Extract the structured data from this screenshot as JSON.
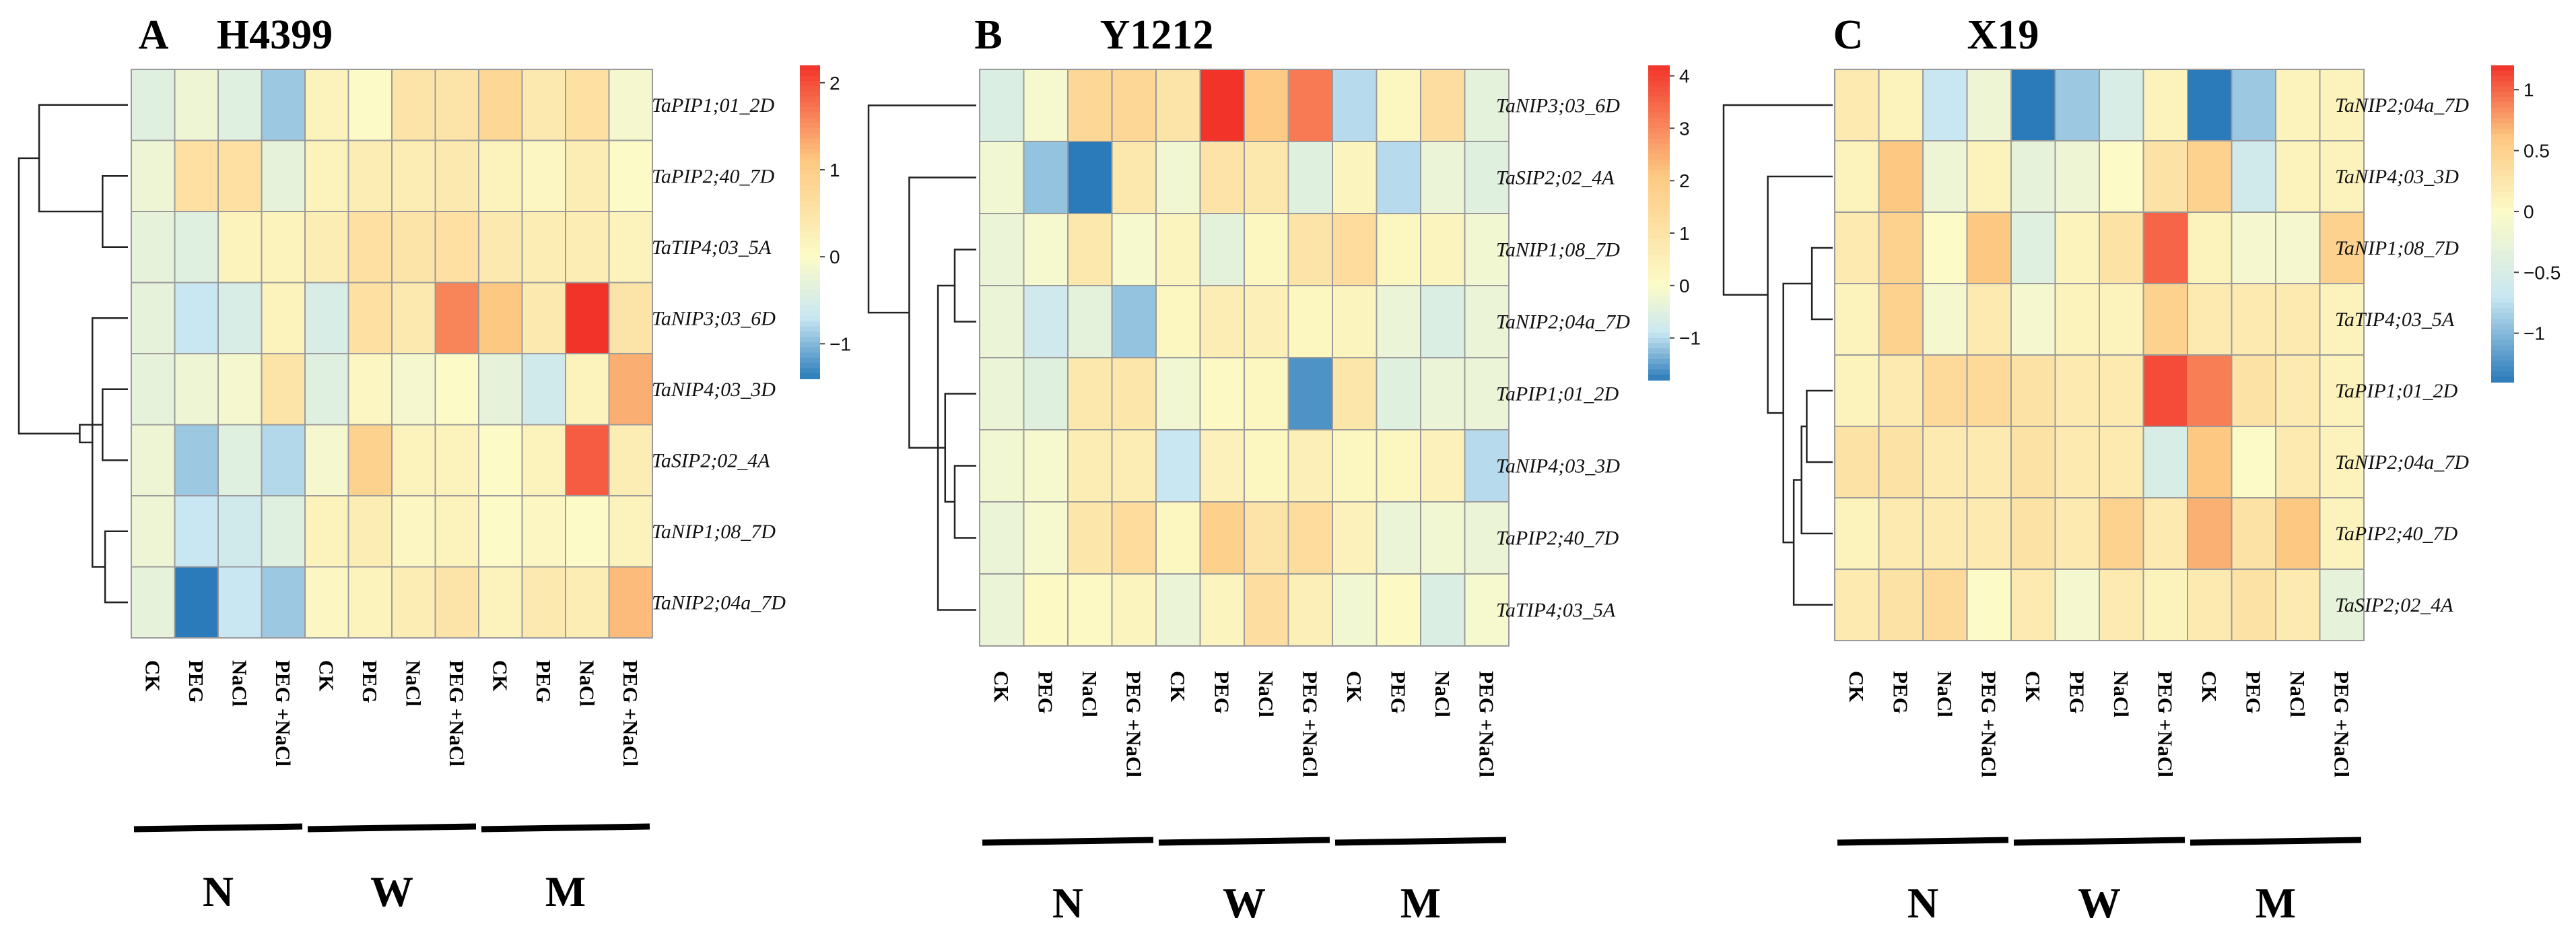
{
  "figure": {
    "group_labels": [
      "N",
      "W",
      "M"
    ],
    "colormap": {
      "low": "#2b7bba",
      "mid_low": "#c9e7f2",
      "mid": "#fcfbc8",
      "mid_high": "#fdc982",
      "high": "#f2332a"
    }
  },
  "chart_data": [
    {
      "type": "heatmap",
      "letter": "A",
      "title": "H4399",
      "columns": [
        "CK",
        "PEG",
        "NaCl",
        "PEG +NaCl",
        "CK",
        "PEG",
        "NaCl",
        "PEG +NaCl",
        "CK",
        "PEG",
        "NaCl",
        "PEG +NaCl"
      ],
      "column_groups": [
        "N",
        "N",
        "N",
        "N",
        "W",
        "W",
        "W",
        "W",
        "M",
        "M",
        "M",
        "M"
      ],
      "rows": [
        "TaPIP1;01_2D",
        "TaPIP2;40_7D",
        "TaTIP4;03_5A",
        "TaNIP3;03_6D",
        "TaNIP4;03_3D",
        "TaSIP2;02_4A",
        "TaNIP1;08_7D",
        "TaNIP2;04a_7D"
      ],
      "values": [
        [
          -0.4,
          -0.2,
          -0.4,
          -0.9,
          0.2,
          0.0,
          0.5,
          0.5,
          0.8,
          0.4,
          0.6,
          -0.1
        ],
        [
          -0.2,
          0.6,
          0.6,
          -0.3,
          0.2,
          0.3,
          0.3,
          0.4,
          0.2,
          0.1,
          0.3,
          0.0
        ],
        [
          -0.3,
          -0.4,
          0.2,
          0.2,
          0.3,
          0.6,
          0.5,
          0.6,
          0.4,
          0.3,
          0.3,
          0.2
        ],
        [
          -0.3,
          -0.7,
          -0.5,
          0.2,
          -0.5,
          0.6,
          0.4,
          1.6,
          1.1,
          0.4,
          2.2,
          0.5
        ],
        [
          -0.3,
          -0.2,
          -0.1,
          0.5,
          -0.4,
          0.1,
          -0.1,
          0.0,
          -0.3,
          -0.6,
          0.2,
          1.3
        ],
        [
          -0.2,
          -0.9,
          -0.4,
          -0.8,
          -0.1,
          0.9,
          0.2,
          0.2,
          0.0,
          0.2,
          1.9,
          0.3
        ],
        [
          -0.2,
          -0.7,
          -0.6,
          -0.4,
          0.2,
          0.3,
          0.1,
          0.2,
          0.0,
          0.1,
          0.0,
          0.2
        ],
        [
          -0.3,
          -1.4,
          -0.7,
          -0.9,
          0.1,
          0.2,
          0.3,
          0.5,
          0.2,
          0.4,
          0.3,
          1.2
        ]
      ],
      "dendrogram": {
        "merges": [
          [
            1,
            2
          ],
          [
            0,
            8
          ],
          [
            4,
            5
          ],
          [
            6,
            7
          ],
          [
            3,
            11
          ],
          [
            10,
            12
          ],
          [
            9,
            13
          ]
        ],
        "heights": [
          1,
          3.5,
          1,
          0.9,
          1.4,
          1.9,
          4.3
        ]
      },
      "colorbar": {
        "min": -1.4,
        "max": 2.2,
        "ticks": [
          -1,
          0,
          1,
          2
        ],
        "tick_labels": [
          "−1",
          "0",
          "1",
          "2"
        ]
      }
    },
    {
      "type": "heatmap",
      "letter": "B",
      "title": "Y1212",
      "columns": [
        "CK",
        "PEG",
        "NaCl",
        "PEG +NaCl",
        "CK",
        "PEG",
        "NaCl",
        "PEG +NaCl",
        "CK",
        "PEG",
        "NaCl",
        "PEG +NaCl"
      ],
      "column_groups": [
        "N",
        "N",
        "N",
        "N",
        "W",
        "W",
        "W",
        "W",
        "M",
        "M",
        "M",
        "M"
      ],
      "rows": [
        "TaNIP3;03_6D",
        "TaSIP2;02_4A",
        "TaNIP1;08_7D",
        "TaNIP2;04a_7D",
        "TaPIP1;01_2D",
        "TaNIP4;03_3D",
        "TaPIP2;40_7D",
        "TaTIP4;03_5A"
      ],
      "values": [
        [
          -0.6,
          -0.1,
          1.5,
          1.5,
          1.0,
          4.2,
          2.0,
          3.2,
          -1.0,
          0.2,
          1.2,
          -0.4
        ],
        [
          -0.2,
          -1.2,
          -1.8,
          0.8,
          -0.2,
          1.0,
          0.8,
          -0.5,
          0.3,
          -1.0,
          -0.3,
          -0.5
        ],
        [
          -0.3,
          -0.1,
          0.8,
          -0.1,
          0.3,
          -0.4,
          0.2,
          1.0,
          1.3,
          0.2,
          0.3,
          -0.2
        ],
        [
          -0.3,
          -0.8,
          -0.4,
          -1.2,
          0.2,
          0.6,
          0.5,
          0.2,
          0.3,
          -0.3,
          -0.6,
          -0.3
        ],
        [
          -0.3,
          -0.5,
          0.8,
          0.9,
          -0.2,
          0.1,
          0.2,
          -1.6,
          0.9,
          -0.5,
          -0.3,
          -0.3
        ],
        [
          -0.2,
          -0.1,
          0.6,
          0.6,
          -0.9,
          0.4,
          0.2,
          0.5,
          0.2,
          0.2,
          0.4,
          -1.0
        ],
        [
          -0.3,
          -0.1,
          0.9,
          1.3,
          0.2,
          1.8,
          1.0,
          1.3,
          0.4,
          -0.3,
          -0.2,
          -0.3
        ],
        [
          -0.3,
          0.1,
          0.1,
          0.3,
          -0.3,
          0.3,
          1.2,
          0.5,
          -0.2,
          0.1,
          -0.6,
          -0.1
        ]
      ],
      "dendrogram": {
        "merges": [
          [
            2,
            3
          ],
          [
            5,
            6
          ],
          [
            4,
            9
          ],
          [
            8,
            7
          ],
          [
            10,
            11
          ],
          [
            1,
            12
          ],
          [
            0,
            13
          ]
        ],
        "heights": [
          0.9,
          0.9,
          1.3,
          1.6,
          2.0,
          2.8,
          4.5
        ]
      },
      "colorbar": {
        "min": -1.8,
        "max": 4.2,
        "ticks": [
          -1,
          0,
          1,
          2,
          3,
          4
        ],
        "tick_labels": [
          "−1",
          "0",
          "1",
          "2",
          "3",
          "4"
        ]
      }
    },
    {
      "type": "heatmap",
      "letter": "C",
      "title": "X19",
      "columns": [
        "CK",
        "PEG",
        "NaCl",
        "PEG +NaCl",
        "CK",
        "PEG",
        "NaCl",
        "PEG +NaCl",
        "CK",
        "PEG",
        "NaCl",
        "PEG +NaCl"
      ],
      "column_groups": [
        "N",
        "N",
        "N",
        "N",
        "W",
        "W",
        "W",
        "W",
        "M",
        "M",
        "M",
        "M"
      ],
      "rows": [
        "TaNIP2;04a_7D",
        "TaNIP4;03_3D",
        "TaNIP1;08_7D",
        "TaTIP4;03_5A",
        "TaPIP1;01_2D",
        "TaNIP2;04a_7D",
        "TaPIP2;40_7D",
        "TaSIP2;02_4A"
      ],
      "values": [
        [
          0.2,
          0.1,
          -0.7,
          -0.2,
          -1.4,
          -0.9,
          -0.5,
          0.1,
          -1.4,
          -0.9,
          0.1,
          0.1
        ],
        [
          0.1,
          0.6,
          -0.2,
          0.1,
          -0.3,
          -0.2,
          0.0,
          0.3,
          0.5,
          -0.6,
          0.1,
          0.1
        ],
        [
          0.2,
          0.5,
          0.0,
          0.6,
          -0.4,
          0.1,
          0.3,
          1.0,
          0.1,
          -0.1,
          -0.1,
          0.5
        ],
        [
          0.1,
          0.5,
          -0.1,
          0.2,
          -0.1,
          0.1,
          0.1,
          0.5,
          0.2,
          0.2,
          0.2,
          0.1
        ],
        [
          0.1,
          0.2,
          0.4,
          0.4,
          0.3,
          0.2,
          0.2,
          1.1,
          0.9,
          0.3,
          0.2,
          0.1
        ],
        [
          0.3,
          0.3,
          0.2,
          0.2,
          0.3,
          0.2,
          0.2,
          -0.5,
          0.6,
          0.0,
          0.2,
          0.1
        ],
        [
          0.1,
          0.2,
          0.2,
          0.2,
          0.3,
          0.2,
          0.5,
          0.2,
          0.7,
          0.3,
          0.6,
          0.1
        ],
        [
          0.2,
          0.3,
          0.4,
          0.0,
          0.2,
          -0.1,
          0.2,
          0.1,
          0.2,
          0.3,
          0.2,
          -0.3
        ]
      ],
      "dendrogram": {
        "merges": [
          [
            2,
            3
          ],
          [
            4,
            5
          ],
          [
            9,
            6
          ],
          [
            10,
            7
          ],
          [
            8,
            11
          ],
          [
            1,
            12
          ],
          [
            0,
            13
          ]
        ],
        "heights": [
          0.8,
          1.0,
          1.2,
          1.5,
          1.9,
          2.5,
          4.2
        ]
      },
      "colorbar": {
        "min": -1.4,
        "max": 1.2,
        "ticks": [
          -1,
          -0.5,
          0,
          0.5,
          1
        ],
        "tick_labels": [
          "−1",
          "−0.5",
          "0",
          "0.5",
          "1"
        ]
      }
    }
  ]
}
